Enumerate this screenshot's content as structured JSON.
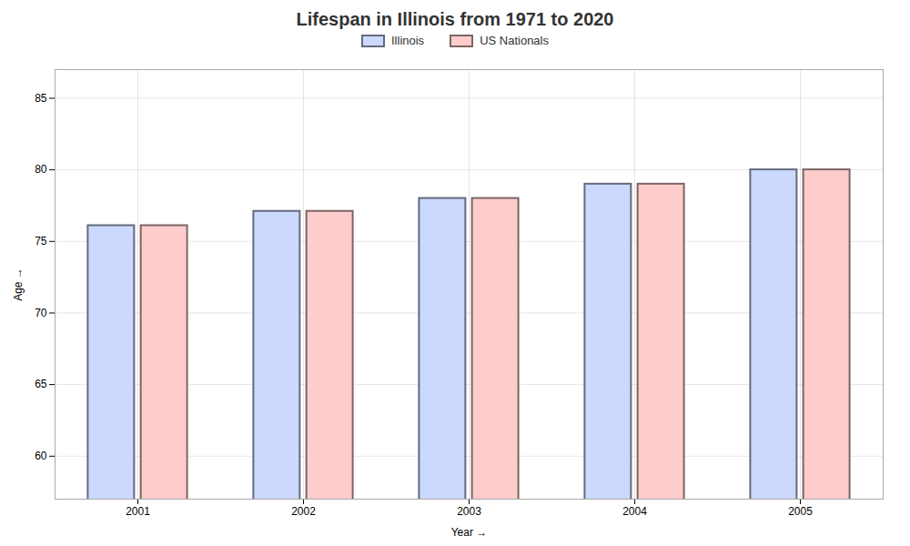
{
  "chart_data": {
    "type": "bar",
    "title": "Lifespan in Illinois from 1971 to 2020",
    "xlabel": "Year",
    "ylabel": "Age",
    "categories": [
      "2001",
      "2002",
      "2003",
      "2004",
      "2005"
    ],
    "series": [
      {
        "name": "Illinois",
        "color": "#ccd9ff",
        "values": [
          76.1,
          77.1,
          78.0,
          79.0,
          80.0
        ]
      },
      {
        "name": "US Nationals",
        "color": "#ffcccc",
        "values": [
          76.1,
          77.1,
          78.0,
          79.0,
          80.0
        ]
      }
    ],
    "ylim": [
      57,
      87
    ],
    "yticks": [
      60,
      65,
      70,
      75,
      80,
      85
    ],
    "grid": true,
    "legend": "top"
  }
}
